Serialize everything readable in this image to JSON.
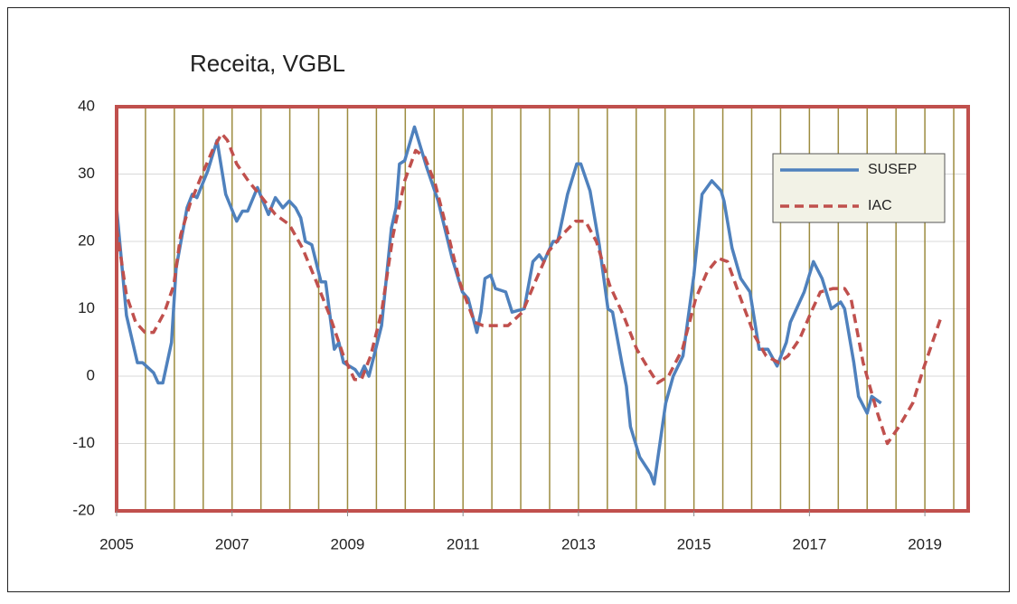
{
  "chart_data": {
    "type": "line",
    "title": "Receita, VGBL",
    "xlim": [
      2005,
      2019.75
    ],
    "xticks": [
      2005,
      2007,
      2009,
      2011,
      2013,
      2015,
      2017,
      2019
    ],
    "xminorticks": [
      2005.5,
      2006,
      2006.5,
      2007,
      2007.5,
      2008,
      2008.5,
      2009,
      2009.5,
      2010,
      2010.5,
      2011,
      2011.5,
      2012,
      2012.5,
      2013,
      2013.5,
      2014,
      2014.5,
      2015,
      2015.5,
      2016,
      2016.5,
      2017,
      2017.5,
      2018,
      2018.5,
      2019,
      2019.5
    ],
    "ylim": [
      -20,
      40
    ],
    "yticks": [
      -20,
      -10,
      0,
      10,
      20,
      30,
      40
    ],
    "grid": true,
    "legend": "upper right",
    "series": [
      {
        "name": "SUSEP",
        "color": "#4f81bd",
        "dash": "solid",
        "x": [
          2005.0,
          2005.17,
          2005.36,
          2005.45,
          2005.64,
          2005.72,
          2005.8,
          2005.95,
          2006.03,
          2006.22,
          2006.31,
          2006.39,
          2006.58,
          2006.74,
          2006.89,
          2007.08,
          2007.18,
          2007.27,
          2007.44,
          2007.63,
          2007.75,
          2007.88,
          2007.99,
          2008.1,
          2008.19,
          2008.27,
          2008.38,
          2008.54,
          2008.62,
          2008.77,
          2008.85,
          2008.93,
          2009.13,
          2009.21,
          2009.29,
          2009.37,
          2009.59,
          2009.76,
          2009.84,
          2009.9,
          2009.99,
          2010.16,
          2010.37,
          2010.57,
          2010.81,
          2010.99,
          2011.09,
          2011.24,
          2011.31,
          2011.38,
          2011.48,
          2011.56,
          2011.74,
          2011.85,
          2012.06,
          2012.21,
          2012.32,
          2012.4,
          2012.56,
          2012.64,
          2012.81,
          2012.97,
          2013.04,
          2013.2,
          2013.36,
          2013.51,
          2013.59,
          2013.75,
          2013.83,
          2013.9,
          2014.06,
          2014.25,
          2014.31,
          2014.51,
          2014.64,
          2014.81,
          2015.0,
          2015.14,
          2015.31,
          2015.47,
          2015.52,
          2015.66,
          2015.81,
          2015.97,
          2016.13,
          2016.28,
          2016.44,
          2016.6,
          2016.67,
          2016.91,
          2017.07,
          2017.22,
          2017.38,
          2017.54,
          2017.61,
          2017.77,
          2017.85,
          2018.0,
          2018.08,
          2018.24
        ],
        "values": [
          25,
          9,
          2,
          2,
          0.5,
          -1,
          -1,
          5,
          16,
          25,
          27,
          26.5,
          30.5,
          35,
          27,
          23,
          24.5,
          24.5,
          28,
          24,
          26.5,
          25,
          26,
          25,
          23.5,
          20,
          19.5,
          14,
          14,
          4,
          5,
          2,
          1,
          0,
          1.5,
          0,
          7.5,
          22,
          25,
          31.5,
          32,
          37,
          31,
          26,
          17.5,
          12.5,
          11.5,
          6.5,
          9.5,
          14.5,
          15,
          13,
          12.5,
          9.5,
          10,
          17,
          18,
          17,
          20,
          20,
          27,
          31.5,
          31.5,
          27.5,
          19.5,
          10,
          9.5,
          2,
          -1.5,
          -7.5,
          -12,
          -14.5,
          -16,
          -4,
          0,
          3,
          15,
          27,
          29,
          27.5,
          26,
          19,
          14.5,
          12.5,
          4,
          4,
          1.5,
          5,
          8,
          12.5,
          17,
          14.5,
          10,
          11,
          10,
          2,
          -3,
          -5.5,
          -3,
          -4
        ]
      },
      {
        "name": "IAC",
        "color": "#c0504d",
        "dash": "dashed",
        "x": [
          2005.0,
          2005.17,
          2005.33,
          2005.49,
          2005.64,
          2005.83,
          2005.99,
          2006.11,
          2006.27,
          2006.46,
          2006.66,
          2006.82,
          2006.92,
          2007.08,
          2007.28,
          2007.52,
          2007.75,
          2007.99,
          2008.22,
          2008.46,
          2008.69,
          2008.93,
          2009.12,
          2009.24,
          2009.4,
          2009.59,
          2009.79,
          2009.99,
          2010.18,
          2010.34,
          2010.52,
          2010.73,
          2010.96,
          2011.2,
          2011.35,
          2011.56,
          2011.78,
          2012.03,
          2012.25,
          2012.48,
          2012.72,
          2012.95,
          2013.12,
          2013.31,
          2013.54,
          2013.78,
          2014.01,
          2014.22,
          2014.37,
          2014.56,
          2014.8,
          2015.03,
          2015.23,
          2015.42,
          2015.58,
          2015.81,
          2016.05,
          2016.25,
          2016.47,
          2016.63,
          2016.83,
          2017.03,
          2017.19,
          2017.41,
          2017.61,
          2017.72,
          2017.93,
          2018.16,
          2018.35,
          2018.55,
          2018.79,
          2018.97,
          2019.13,
          2019.29
        ],
        "values": [
          22,
          12,
          8,
          6.5,
          6.5,
          9.5,
          13.5,
          21,
          25.5,
          29.5,
          33.5,
          36,
          35,
          31.5,
          29,
          26.5,
          24,
          22.5,
          19,
          14,
          9,
          3,
          -0.5,
          -0.5,
          3,
          9.5,
          21,
          29,
          33.5,
          32.5,
          28.5,
          21.5,
          13.5,
          8,
          7.5,
          7.5,
          7.5,
          9.5,
          14,
          18.5,
          21,
          23,
          23,
          20,
          13.5,
          9,
          4,
          1,
          -1,
          0,
          4,
          11.5,
          15.5,
          17.5,
          17,
          11.5,
          6,
          3,
          2,
          3,
          5.5,
          9.5,
          12.5,
          13,
          13,
          11.5,
          2,
          -5,
          -10,
          -7.5,
          -4,
          1,
          5,
          9
        ]
      }
    ]
  }
}
